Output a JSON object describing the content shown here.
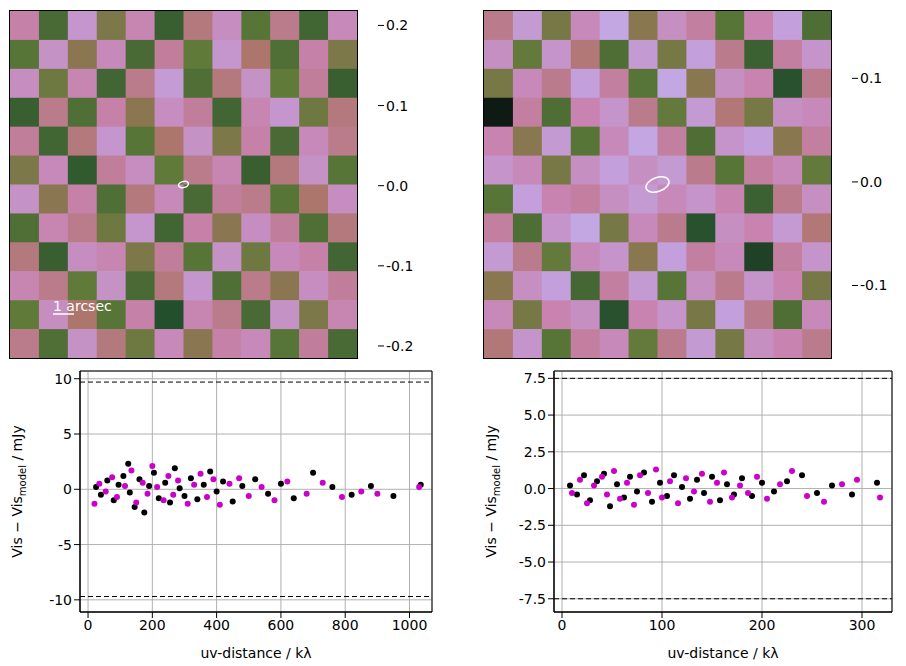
{
  "chart_data": [
    {
      "type": "heatmap",
      "tick_labels": false,
      "annotation": "1 arcsec",
      "cells": [
        [
          0.05,
          -0.08,
          0.1,
          -0.03,
          0.06,
          -0.1,
          0.02,
          0.08,
          -0.06,
          0.03,
          -0.09,
          0.07
        ],
        [
          -0.06,
          0.09,
          -0.02,
          0.07,
          -0.08,
          0.04,
          -0.05,
          0.1,
          0.01,
          -0.07,
          0.05,
          -0.03
        ],
        [
          0.08,
          -0.04,
          0.06,
          -0.09,
          0.03,
          0.11,
          -0.07,
          0.02,
          0.09,
          -0.05,
          0.04,
          -0.1
        ],
        [
          -0.1,
          0.03,
          -0.07,
          0.05,
          -0.02,
          0.08,
          0.04,
          -0.09,
          0.06,
          0.1,
          -0.04,
          0.02
        ],
        [
          0.04,
          -0.09,
          0.02,
          0.1,
          -0.06,
          0.01,
          0.09,
          -0.03,
          0.05,
          -0.08,
          0.07,
          0.03
        ],
        [
          -0.03,
          0.07,
          -0.11,
          0.04,
          0.08,
          -0.05,
          0.03,
          0.06,
          -0.1,
          0.02,
          0.09,
          -0.06
        ],
        [
          0.09,
          -0.02,
          0.05,
          -0.07,
          0.02,
          0.07,
          -0.08,
          0.04,
          0.03,
          -0.06,
          0.01,
          0.08
        ],
        [
          -0.07,
          0.06,
          0.03,
          -0.04,
          0.1,
          -0.09,
          0.05,
          -0.02,
          0.08,
          0.04,
          -0.07,
          0.02
        ],
        [
          0.02,
          -0.1,
          0.08,
          0.06,
          -0.03,
          0.04,
          -0.06,
          0.09,
          -0.04,
          0.07,
          0.05,
          -0.09
        ],
        [
          0.06,
          0.03,
          -0.05,
          0.09,
          -0.08,
          0.02,
          0.1,
          -0.07,
          0.03,
          -0.02,
          0.08,
          0.04
        ],
        [
          -0.05,
          0.08,
          0.01,
          -0.06,
          0.05,
          -0.13,
          0.06,
          0.03,
          -0.08,
          0.09,
          -0.03,
          0.06
        ],
        [
          0.03,
          -0.07,
          0.09,
          0.02,
          -0.04,
          0.07,
          -0.02,
          0.05,
          0.07,
          -0.06,
          0.04,
          -0.08
        ]
      ],
      "colorbar": {
        "range": [
          -0.215,
          0.218
        ],
        "ticks": [
          -0.2,
          -0.1,
          {
            "value": 0,
            "label": "0.0"
          },
          0.1,
          0.2
        ]
      }
    },
    {
      "type": "heatmap",
      "tick_labels": false,
      "cells": [
        [
          0.02,
          0.08,
          -0.03,
          0.05,
          0.1,
          -0.02,
          0.06,
          0.03,
          -0.05,
          0.04,
          0.09,
          -0.06
        ],
        [
          0.06,
          -0.04,
          0.07,
          0.01,
          -0.06,
          0.08,
          -0.03,
          0.09,
          0.02,
          -0.08,
          0.03,
          0.07
        ],
        [
          -0.03,
          0.05,
          0.02,
          0.09,
          0.03,
          -0.05,
          0.1,
          -0.02,
          0.06,
          0.04,
          -0.1,
          0.02
        ],
        [
          -0.17,
          0.03,
          -0.06,
          0.04,
          0.07,
          0.02,
          -0.04,
          0.08,
          0.01,
          -0.03,
          0.06,
          0.05
        ],
        [
          0.04,
          -0.02,
          0.08,
          -0.05,
          0.05,
          0.1,
          0.03,
          -0.06,
          0.07,
          0.09,
          -0.02,
          0.03
        ],
        [
          0.07,
          0.05,
          -0.03,
          0.06,
          0.09,
          0.06,
          0.08,
          0.02,
          -0.05,
          0.03,
          0.05,
          -0.04
        ],
        [
          -0.05,
          0.09,
          0.04,
          0.03,
          0.06,
          0.08,
          0.05,
          0.07,
          0.04,
          -0.08,
          0.02,
          0.06
        ],
        [
          0.03,
          -0.06,
          0.07,
          0.1,
          -0.03,
          0.05,
          0.02,
          -0.1,
          0.06,
          0.04,
          0.08,
          0.01
        ],
        [
          0.08,
          0.02,
          -0.04,
          0.05,
          0.07,
          -0.02,
          0.09,
          0.03,
          0.05,
          -0.12,
          0.03,
          0.07
        ],
        [
          -0.02,
          0.06,
          0.09,
          -0.07,
          0.03,
          0.08,
          -0.05,
          0.06,
          0.02,
          0.07,
          0.04,
          -0.03
        ],
        [
          0.05,
          -0.03,
          0.04,
          0.06,
          -0.1,
          0.04,
          0.07,
          -0.03,
          0.09,
          0.02,
          -0.06,
          0.05
        ],
        [
          0.01,
          0.07,
          -0.05,
          0.03,
          0.05,
          -0.04,
          0.02,
          0.08,
          -0.03,
          0.06,
          0.04,
          0.02
        ]
      ],
      "colorbar": {
        "range": [
          -0.17,
          0.165
        ],
        "ticks": [
          -0.1,
          {
            "value": 0,
            "label": "0.0"
          },
          0.1
        ]
      }
    },
    {
      "type": "scatter",
      "grid": true,
      "xlabel": "uv-distance / kλ",
      "ylabel": {
        "text": "Vis − Vis",
        "sub": "model",
        "after": " / mJy"
      },
      "xlim": [
        -25,
        1070
      ],
      "xticks": [
        0,
        200,
        400,
        600,
        800,
        1000
      ],
      "ylim": [
        -11.1,
        10.7
      ],
      "yticks": [
        -10,
        -5,
        0,
        5,
        10
      ],
      "hlines": [
        9.7,
        -9.7
      ],
      "series": [
        {
          "color": "#000000",
          "marker": "circle",
          "x": [
            25,
            40,
            60,
            80,
            95,
            110,
            125,
            130,
            145,
            160,
            175,
            190,
            205,
            220,
            240,
            255,
            270,
            285,
            300,
            320,
            340,
            360,
            380,
            400,
            420,
            450,
            480,
            520,
            560,
            600,
            640,
            700,
            760,
            820,
            880,
            950,
            1035
          ],
          "values": [
            0.2,
            -0.5,
            0.8,
            -1.0,
            0.4,
            1.2,
            2.3,
            -0.3,
            -1.6,
            0.9,
            -2.1,
            0.3,
            1.5,
            -0.8,
            0.6,
            -1.2,
            1.9,
            0.1,
            -0.6,
            1.0,
            -0.9,
            0.4,
            1.6,
            -0.2,
            0.7,
            -1.1,
            0.3,
            0.9,
            -0.4,
            0.5,
            -0.8,
            1.5,
            0.2,
            -0.5,
            0.3,
            -0.6,
            0.4
          ]
        },
        {
          "color": "#cc00cc",
          "marker": "circle",
          "x": [
            20,
            35,
            55,
            75,
            90,
            115,
            135,
            150,
            170,
            185,
            200,
            215,
            235,
            250,
            265,
            280,
            310,
            330,
            350,
            370,
            390,
            410,
            440,
            470,
            500,
            540,
            580,
            620,
            680,
            730,
            790,
            850,
            900,
            1030
          ],
          "values": [
            -1.3,
            0.5,
            -0.2,
            1.1,
            -0.7,
            0.3,
            1.7,
            -1.2,
            0.6,
            -0.4,
            2.1,
            0.2,
            -1.0,
            1.2,
            -0.5,
            0.8,
            -1.3,
            0.4,
            1.4,
            -0.7,
            0.9,
            -1.4,
            0.5,
            1.0,
            -0.6,
            0.2,
            -1.0,
            0.7,
            -0.4,
            0.6,
            -0.7,
            -0.2,
            -0.4,
            0.2
          ]
        }
      ]
    },
    {
      "type": "scatter",
      "grid": true,
      "xlabel": "uv-distance / kλ",
      "ylabel": {
        "text": "Vis − Vis",
        "sub": "model",
        "after": " / mJy"
      },
      "xlim": [
        -8,
        330
      ],
      "xticks": [
        0,
        100,
        200,
        300
      ],
      "ylim": [
        -8.4,
        8.0
      ],
      "yticks": [
        -7.5,
        {
          "value": -5,
          "label": "-5.0"
        },
        -2.5,
        {
          "value": 0,
          "label": "0.0"
        },
        2.5,
        {
          "value": 5,
          "label": "5.0"
        },
        7.5
      ],
      "hlines": [
        7.5,
        -7.5
      ],
      "series": [
        {
          "color": "#000000",
          "marker": "circle",
          "x": [
            8,
            15,
            22,
            28,
            35,
            42,
            48,
            55,
            62,
            68,
            75,
            82,
            90,
            98,
            105,
            112,
            120,
            128,
            135,
            142,
            150,
            158,
            165,
            172,
            180,
            190,
            200,
            212,
            225,
            240,
            255,
            270,
            290,
            315
          ],
          "values": [
            0.2,
            -0.4,
            0.9,
            -0.8,
            0.5,
            1.0,
            -1.2,
            0.3,
            -0.6,
            0.8,
            -0.2,
            1.1,
            -0.9,
            0.4,
            -0.5,
            0.9,
            0.1,
            -0.7,
            0.6,
            -0.3,
            0.8,
            -0.8,
            0.3,
            -0.4,
            0.7,
            -0.5,
            0.4,
            -0.2,
            0.5,
            0.9,
            -0.3,
            0.2,
            -0.4,
            0.4
          ]
        },
        {
          "color": "#cc00cc",
          "marker": "circle",
          "x": [
            10,
            18,
            25,
            32,
            40,
            45,
            52,
            58,
            65,
            72,
            78,
            86,
            94,
            100,
            108,
            116,
            124,
            132,
            140,
            148,
            155,
            162,
            170,
            178,
            186,
            195,
            205,
            218,
            230,
            245,
            262,
            280,
            295,
            318
          ],
          "values": [
            -0.3,
            0.6,
            -1.0,
            0.2,
            0.8,
            -0.4,
            1.2,
            -0.7,
            0.4,
            -1.1,
            0.9,
            -0.3,
            1.3,
            -0.6,
            0.5,
            -1.0,
            0.7,
            -0.2,
            1.0,
            -0.9,
            0.4,
            1.1,
            -0.6,
            0.2,
            -0.3,
            0.8,
            -0.7,
            0.3,
            1.2,
            -0.5,
            -0.9,
            0.3,
            0.6,
            -0.6
          ]
        }
      ]
    }
  ]
}
